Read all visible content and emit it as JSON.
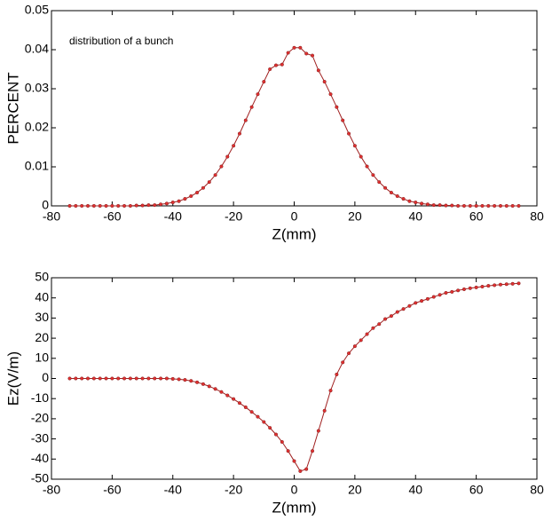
{
  "chart_data": [
    {
      "type": "line",
      "xlabel": "Z(mm)",
      "ylabel": "PERCENT",
      "annotation": "distribution of a bunch",
      "color": "#e03030",
      "x": [
        -74,
        -72,
        -70,
        -68,
        -66,
        -64,
        -62,
        -60,
        -58,
        -56,
        -54,
        -52,
        -50,
        -48,
        -46,
        -44,
        -42,
        -40,
        -38,
        -36,
        -34,
        -32,
        -30,
        -28,
        -26,
        -24,
        -22,
        -20,
        -18,
        -16,
        -14,
        -12,
        -10,
        -8,
        -6,
        -4,
        -2,
        0,
        2,
        4,
        6,
        8,
        10,
        12,
        14,
        16,
        18,
        20,
        22,
        24,
        26,
        28,
        30,
        32,
        34,
        36,
        38,
        40,
        42,
        44,
        46,
        48,
        50,
        52,
        54,
        56,
        58,
        60,
        62,
        64,
        66,
        68,
        70,
        72,
        74
      ],
      "values": [
        0,
        0,
        0,
        0,
        0,
        0,
        0,
        0,
        0,
        0,
        0,
        0.0001,
        0.0001,
        0.0002,
        0.0002,
        0.0004,
        0.0006,
        0.0009,
        0.0012,
        0.0018,
        0.0025,
        0.0034,
        0.0046,
        0.0061,
        0.0079,
        0.0101,
        0.0126,
        0.0154,
        0.0185,
        0.0219,
        0.0253,
        0.0286,
        0.0318,
        0.035,
        0.036,
        0.0362,
        0.0392,
        0.0405,
        0.0405,
        0.039,
        0.0385,
        0.0347,
        0.0318,
        0.0286,
        0.0253,
        0.0219,
        0.0185,
        0.0154,
        0.0126,
        0.0101,
        0.0079,
        0.0061,
        0.0046,
        0.0034,
        0.0025,
        0.0018,
        0.0012,
        0.0009,
        0.0006,
        0.0004,
        0.0002,
        0.0002,
        0.0001,
        0.0001,
        0,
        0,
        0,
        0,
        0,
        0,
        0,
        0,
        0,
        0,
        0
      ],
      "xlim": [
        -80,
        80
      ],
      "xticks": [
        -80,
        -60,
        -40,
        -20,
        0,
        20,
        40,
        60,
        80
      ],
      "ylim": [
        0,
        0.05
      ],
      "yticks": [
        0,
        0.01,
        0.02,
        0.03,
        0.04,
        0.05
      ]
    },
    {
      "type": "line",
      "xlabel": "Z(mm)",
      "ylabel": "Ez(V/m)",
      "color": "#e03030",
      "x": [
        -74,
        -72,
        -70,
        -68,
        -66,
        -64,
        -62,
        -60,
        -58,
        -56,
        -54,
        -52,
        -50,
        -48,
        -46,
        -44,
        -42,
        -40,
        -38,
        -36,
        -34,
        -32,
        -30,
        -28,
        -26,
        -24,
        -22,
        -20,
        -18,
        -16,
        -14,
        -12,
        -10,
        -8,
        -6,
        -4,
        -2,
        0,
        2,
        4,
        6,
        8,
        10,
        12,
        14,
        16,
        18,
        20,
        22,
        24,
        26,
        28,
        30,
        32,
        34,
        36,
        38,
        40,
        42,
        44,
        46,
        48,
        50,
        52,
        54,
        56,
        58,
        60,
        62,
        64,
        66,
        68,
        70,
        72,
        74
      ],
      "values": [
        0,
        0,
        0,
        0,
        0,
        0,
        0,
        0,
        0,
        0,
        0,
        0,
        0,
        0,
        0,
        0,
        0,
        -0.2,
        -0.4,
        -0.7,
        -1.2,
        -1.9,
        -2.8,
        -3.9,
        -5.2,
        -6.7,
        -8.4,
        -10.2,
        -12.2,
        -14.3,
        -16.6,
        -19,
        -21.6,
        -24.5,
        -27.8,
        -31.5,
        -36,
        -41,
        -46,
        -45,
        -36,
        -26,
        -16,
        -6,
        2,
        8,
        12.5,
        16,
        19,
        22,
        25,
        27,
        29.5,
        31,
        33,
        34.5,
        36,
        37.5,
        38.5,
        39.5,
        40.5,
        41.5,
        42.5,
        43,
        43.7,
        44.3,
        44.8,
        45.2,
        45.6,
        46,
        46.3,
        46.6,
        46.8,
        47,
        47.2
      ],
      "xlim": [
        -80,
        80
      ],
      "xticks": [
        -80,
        -60,
        -40,
        -20,
        0,
        20,
        40,
        60,
        80
      ],
      "ylim": [
        -50,
        50
      ],
      "yticks": [
        -50,
        -40,
        -30,
        -20,
        -10,
        0,
        10,
        20,
        30,
        40,
        50
      ]
    }
  ]
}
